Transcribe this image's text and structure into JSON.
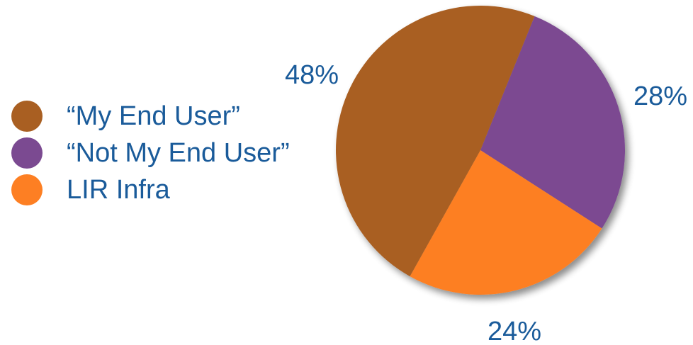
{
  "chart_data": {
    "type": "pie",
    "title": "",
    "slices": [
      {
        "label": "“My End User”",
        "value": 48,
        "value_label": "48%",
        "color": "#A95F22"
      },
      {
        "label": "“Not My End User”",
        "value": 28,
        "value_label": "28%",
        "color": "#7B4A91"
      },
      {
        "label": "LIR Infra",
        "value": 24,
        "value_label": "24%",
        "color": "#FD7F23"
      }
    ],
    "legend_position": "left"
  }
}
